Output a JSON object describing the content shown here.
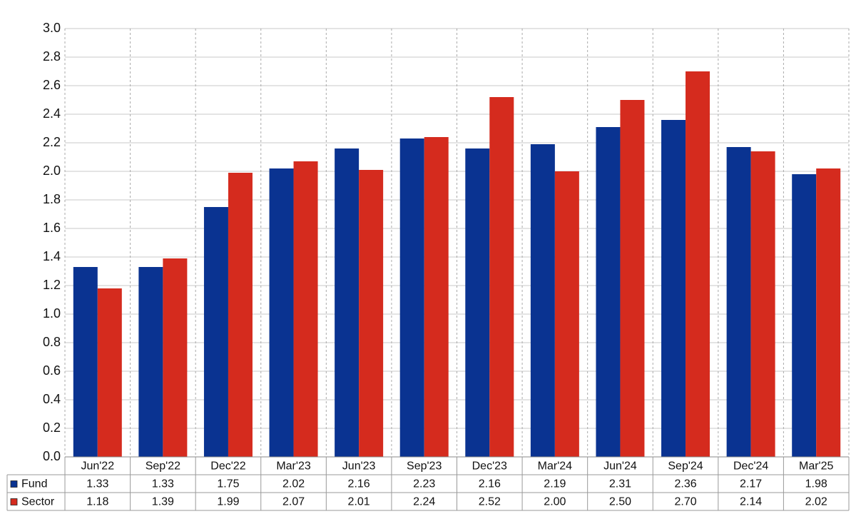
{
  "chart_data": {
    "type": "bar",
    "categories": [
      "Jun'22",
      "Sep'22",
      "Dec'22",
      "Mar'23",
      "Jun'23",
      "Sep'23",
      "Dec'23",
      "Mar'24",
      "Jun'24",
      "Sep'24",
      "Dec'24",
      "Mar'25"
    ],
    "series": [
      {
        "name": "Fund",
        "color": "#0a3391",
        "values": [
          1.33,
          1.33,
          1.75,
          2.02,
          2.16,
          2.23,
          2.16,
          2.19,
          2.31,
          2.36,
          2.17,
          1.98
        ],
        "value_labels": [
          "1.33",
          "1.33",
          "1.75",
          "2.02",
          "2.16",
          "2.23",
          "2.16",
          "2.19",
          "2.31",
          "2.36",
          "2.17",
          "1.98"
        ]
      },
      {
        "name": "Sector",
        "color": "#d52b1e",
        "values": [
          1.18,
          1.39,
          1.99,
          2.07,
          2.01,
          2.24,
          2.52,
          2.0,
          2.5,
          2.7,
          2.14,
          2.02
        ],
        "value_labels": [
          "1.18",
          "1.39",
          "1.99",
          "2.07",
          "2.01",
          "2.24",
          "2.52",
          "2.00",
          "2.50",
          "2.70",
          "2.14",
          "2.02"
        ]
      }
    ],
    "ylim": [
      0,
      3
    ],
    "yticks": [
      {
        "value": 0,
        "label": "0.0"
      },
      0.2,
      0.4,
      0.6,
      0.8,
      {
        "value": 1,
        "label": "1.0"
      },
      1.2,
      1.4,
      1.6,
      1.8,
      {
        "value": 2,
        "label": "2.0"
      },
      2.2,
      2.4,
      2.6,
      2.8,
      {
        "value": 3,
        "label": "3.0"
      }
    ],
    "grid": true
  }
}
